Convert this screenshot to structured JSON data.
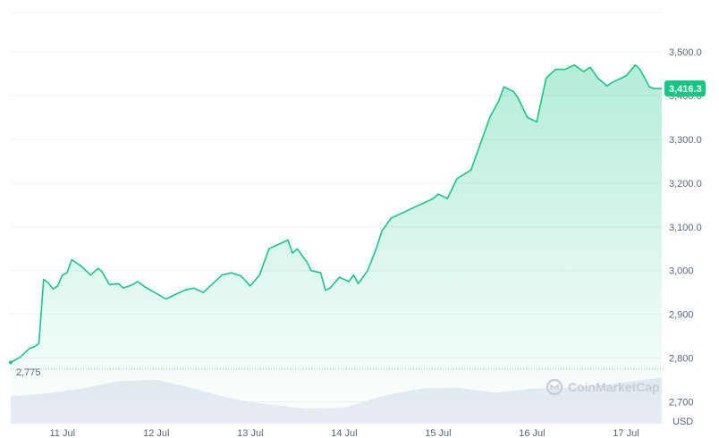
{
  "chart_data": {
    "type": "area",
    "currency_label": "USD",
    "watermark": "CoinMarketCap",
    "x_ticks": [
      "11 Jul",
      "12 Jul",
      "13 Jul",
      "14 Jul",
      "15 Jul",
      "16 Jul",
      "17 Jul"
    ],
    "y_ticks": [
      "3,500.0",
      "3,400.0",
      "3,300.0",
      "3,200.0",
      "3,100.0",
      "3,000",
      "2,900",
      "2,800",
      "2,700"
    ],
    "ylim": [
      2650,
      3590
    ],
    "xlim": [
      10.45,
      17.4
    ],
    "current_price": 3416.3,
    "current_price_label": "3,416.3",
    "start_price_label": "2,775",
    "start_price": 2775,
    "colors": {
      "line": "#16c784",
      "tag": "#16c784",
      "volume": "#e8ecf2"
    },
    "price_series": {
      "x": [
        10.45,
        10.55,
        10.6,
        10.65,
        10.7,
        10.75,
        10.8,
        10.85,
        10.9,
        10.95,
        11.0,
        11.05,
        11.1,
        11.2,
        11.3,
        11.38,
        11.42,
        11.5,
        11.6,
        11.65,
        11.75,
        11.8,
        11.9,
        12.0,
        12.1,
        12.2,
        12.3,
        12.4,
        12.5,
        12.55,
        12.6,
        12.7,
        12.8,
        12.9,
        13.0,
        13.1,
        13.2,
        13.3,
        13.4,
        13.45,
        13.5,
        13.6,
        13.65,
        13.75,
        13.8,
        13.85,
        13.95,
        14.05,
        14.1,
        14.15,
        14.25,
        14.35,
        14.4,
        14.5,
        14.6,
        14.7,
        14.8,
        14.95,
        15.0,
        15.1,
        15.2,
        15.35,
        15.45,
        15.55,
        15.65,
        15.7,
        15.8,
        15.85,
        15.95,
        16.05,
        16.15,
        16.25,
        16.35,
        16.45,
        16.55,
        16.62,
        16.7,
        16.8,
        16.85,
        16.95,
        17.0,
        17.1,
        17.15,
        17.2,
        17.25,
        17.3,
        17.38
      ],
      "y": [
        2790,
        2802,
        2812,
        2822,
        2826,
        2833,
        2980,
        2972,
        2958,
        2965,
        2990,
        2995,
        3025,
        3010,
        2990,
        3005,
        2998,
        2968,
        2970,
        2960,
        2968,
        2975,
        2960,
        2948,
        2935,
        2945,
        2955,
        2960,
        2950,
        2960,
        2970,
        2990,
        2995,
        2988,
        2965,
        2990,
        3050,
        3060,
        3070,
        3040,
        3050,
        3020,
        3000,
        2995,
        2955,
        2960,
        2985,
        2975,
        2990,
        2970,
        3000,
        3055,
        3090,
        3120,
        3130,
        3140,
        3150,
        3165,
        3175,
        3165,
        3210,
        3230,
        3290,
        3350,
        3390,
        3420,
        3410,
        3395,
        3350,
        3340,
        3440,
        3460,
        3460,
        3470,
        3455,
        3465,
        3440,
        3422,
        3430,
        3440,
        3445,
        3470,
        3460,
        3440,
        3420,
        3416,
        3416
      ]
    },
    "volume_series": {
      "x": [
        10.45,
        10.8,
        11.2,
        11.6,
        12.0,
        12.4,
        12.8,
        13.2,
        13.6,
        14.0,
        14.4,
        14.8,
        15.2,
        15.6,
        16.0,
        16.4,
        16.8,
        17.2,
        17.38
      ],
      "y": [
        0.55,
        0.6,
        0.7,
        0.85,
        0.88,
        0.7,
        0.5,
        0.38,
        0.3,
        0.32,
        0.55,
        0.7,
        0.72,
        0.62,
        0.7,
        0.72,
        0.78,
        0.88,
        0.92
      ]
    }
  }
}
